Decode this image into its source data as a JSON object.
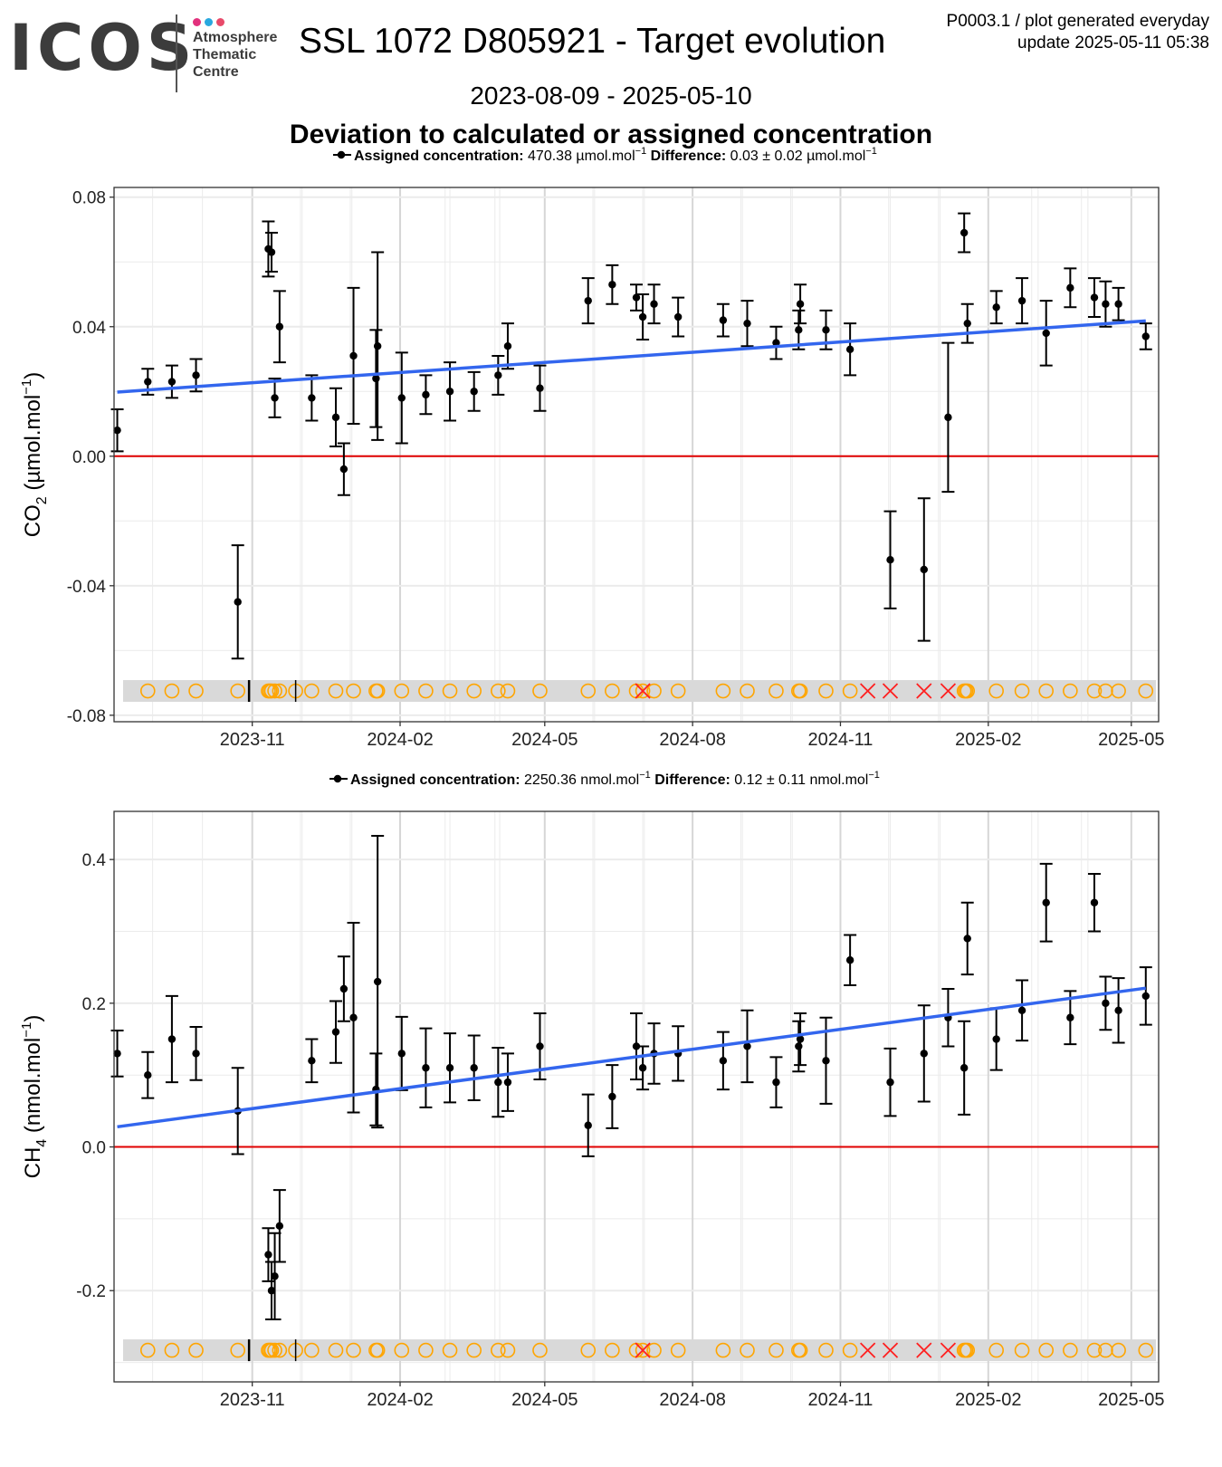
{
  "header": {
    "logo": "ICOS",
    "logo_line1": "Atmosphere",
    "logo_line2": "Thematic",
    "logo_line3": "Centre",
    "logo_dot_colors": [
      "#e2317d",
      "#29a8df",
      "#e84a6a"
    ],
    "title": "SSL 1072 D805921 - Target evolution",
    "meta_line1": "P0003.1 / plot generated everyday",
    "meta_line2": "update  2025-05-11 05:38",
    "date_range": "2023-08-09 - 2025-05-10",
    "subtitle": "Deviation to calculated or assigned concentration"
  },
  "colors": {
    "points": "#000000",
    "trend": "#3366ee",
    "zero_line": "#e00000",
    "flag_ok": "#ffa500",
    "flag_bad": "#ff2020",
    "flag_band": "#d9d9d9",
    "grid": "#ebebeb"
  },
  "chart_data": [
    {
      "type": "scatter",
      "legend_label": "Assigned concentration:",
      "legend_value": " 470.38 µmol.mol",
      "legend_diff_label": "Difference:",
      "legend_diff_value": " 0.03 ± 0.02 µmol.mol",
      "legend_sup": "−1",
      "ylabel": "CO",
      "ylabel_sub": "2",
      "ylabel_unit": " (µmol.mol",
      "ylabel_sup": "−1",
      "ylabel_end": ")",
      "ylim": [
        -0.082,
        0.083
      ],
      "yticks": [
        -0.08,
        -0.04,
        0.0,
        0.04,
        0.08
      ],
      "ytick_labels": [
        "-0.08",
        "-0.04",
        "0.00",
        "0.04",
        "0.08"
      ],
      "xlim": [
        "2023-08-07",
        "2025-05-18"
      ],
      "xticks": [
        "2023-11-01",
        "2024-02-01",
        "2024-05-01",
        "2024-08-01",
        "2024-11-01",
        "2025-02-01",
        "2025-05-01"
      ],
      "xtick_labels": [
        "2023-11",
        "2024-02",
        "2024-05",
        "2024-08",
        "2024-11",
        "2025-02",
        "2025-05"
      ],
      "trend": {
        "start": [
          "2023-08-09",
          0.0198
        ],
        "end": [
          "2025-05-10",
          0.0418
        ]
      },
      "flag_y": -0.0725,
      "points": [
        {
          "date": "2023-08-09",
          "y": 0.008,
          "lo": 0.0015,
          "hi": 0.0145
        },
        {
          "date": "2023-08-28",
          "y": 0.023,
          "lo": 0.019,
          "hi": 0.027
        },
        {
          "date": "2023-09-12",
          "y": 0.023,
          "lo": 0.018,
          "hi": 0.028
        },
        {
          "date": "2023-09-27",
          "y": 0.025,
          "lo": 0.02,
          "hi": 0.03
        },
        {
          "date": "2023-10-23",
          "y": -0.045,
          "lo": -0.0625,
          "hi": -0.0275
        },
        {
          "date": "2023-11-11",
          "y": 0.064,
          "lo": 0.0555,
          "hi": 0.0725
        },
        {
          "date": "2023-11-13",
          "y": 0.063,
          "lo": 0.057,
          "hi": 0.069
        },
        {
          "date": "2023-11-15",
          "y": 0.018,
          "lo": 0.012,
          "hi": 0.024
        },
        {
          "date": "2023-11-18",
          "y": 0.04,
          "lo": 0.029,
          "hi": 0.051
        },
        {
          "date": "2023-12-08",
          "y": 0.018,
          "lo": 0.011,
          "hi": 0.025
        },
        {
          "date": "2023-12-23",
          "y": 0.012,
          "lo": 0.003,
          "hi": 0.021
        },
        {
          "date": "2023-12-28",
          "y": -0.004,
          "lo": -0.012,
          "hi": 0.004
        },
        {
          "date": "2024-01-03",
          "y": 0.031,
          "lo": 0.01,
          "hi": 0.052
        },
        {
          "date": "2024-01-17",
          "y": 0.024,
          "lo": 0.009,
          "hi": 0.039
        },
        {
          "date": "2024-01-18",
          "y": 0.034,
          "lo": 0.005,
          "hi": 0.063
        },
        {
          "date": "2024-02-02",
          "y": 0.018,
          "lo": 0.004,
          "hi": 0.032
        },
        {
          "date": "2024-02-17",
          "y": 0.019,
          "lo": 0.013,
          "hi": 0.025
        },
        {
          "date": "2024-03-03",
          "y": 0.02,
          "lo": 0.011,
          "hi": 0.029
        },
        {
          "date": "2024-03-18",
          "y": 0.02,
          "lo": 0.014,
          "hi": 0.026
        },
        {
          "date": "2024-04-02",
          "y": 0.025,
          "lo": 0.019,
          "hi": 0.031
        },
        {
          "date": "2024-04-08",
          "y": 0.034,
          "lo": 0.027,
          "hi": 0.041
        },
        {
          "date": "2024-04-28",
          "y": 0.021,
          "lo": 0.014,
          "hi": 0.028
        },
        {
          "date": "2024-05-28",
          "y": 0.048,
          "lo": 0.041,
          "hi": 0.055
        },
        {
          "date": "2024-06-12",
          "y": 0.053,
          "lo": 0.047,
          "hi": 0.059
        },
        {
          "date": "2024-06-27",
          "y": 0.049,
          "lo": 0.045,
          "hi": 0.053
        },
        {
          "date": "2024-07-01",
          "y": 0.043,
          "lo": 0.036,
          "hi": 0.05
        },
        {
          "date": "2024-07-08",
          "y": 0.047,
          "lo": 0.041,
          "hi": 0.053
        },
        {
          "date": "2024-07-23",
          "y": 0.043,
          "lo": 0.037,
          "hi": 0.049
        },
        {
          "date": "2024-08-20",
          "y": 0.042,
          "lo": 0.037,
          "hi": 0.047
        },
        {
          "date": "2024-09-04",
          "y": 0.041,
          "lo": 0.034,
          "hi": 0.048
        },
        {
          "date": "2024-09-22",
          "y": 0.035,
          "lo": 0.03,
          "hi": 0.04
        },
        {
          "date": "2024-10-06",
          "y": 0.039,
          "lo": 0.033,
          "hi": 0.045
        },
        {
          "date": "2024-10-07",
          "y": 0.047,
          "lo": 0.041,
          "hi": 0.053
        },
        {
          "date": "2024-10-23",
          "y": 0.039,
          "lo": 0.033,
          "hi": 0.045
        },
        {
          "date": "2024-11-07",
          "y": 0.033,
          "lo": 0.025,
          "hi": 0.041
        },
        {
          "date": "2024-12-02",
          "y": -0.032,
          "lo": -0.047,
          "hi": -0.017
        },
        {
          "date": "2024-12-23",
          "y": -0.035,
          "lo": -0.057,
          "hi": -0.013
        },
        {
          "date": "2025-01-07",
          "y": 0.012,
          "lo": -0.011,
          "hi": 0.035
        },
        {
          "date": "2025-01-17",
          "y": 0.069,
          "lo": 0.063,
          "hi": 0.075
        },
        {
          "date": "2025-01-19",
          "y": 0.041,
          "lo": 0.035,
          "hi": 0.047
        },
        {
          "date": "2025-02-06",
          "y": 0.046,
          "lo": 0.041,
          "hi": 0.051
        },
        {
          "date": "2025-02-22",
          "y": 0.048,
          "lo": 0.041,
          "hi": 0.055
        },
        {
          "date": "2025-03-09",
          "y": 0.038,
          "lo": 0.028,
          "hi": 0.048
        },
        {
          "date": "2025-03-24",
          "y": 0.052,
          "lo": 0.046,
          "hi": 0.058
        },
        {
          "date": "2025-04-08",
          "y": 0.049,
          "lo": 0.043,
          "hi": 0.055
        },
        {
          "date": "2025-04-15",
          "y": 0.047,
          "lo": 0.04,
          "hi": 0.054
        },
        {
          "date": "2025-04-23",
          "y": 0.047,
          "lo": 0.042,
          "hi": 0.052
        },
        {
          "date": "2025-05-10",
          "y": 0.037,
          "lo": 0.033,
          "hi": 0.041
        }
      ]
    },
    {
      "type": "scatter",
      "legend_label": "Assigned concentration:",
      "legend_value": " 2250.36 nmol.mol",
      "legend_diff_label": "Difference:",
      "legend_diff_value": " 0.12 ± 0.11 nmol.mol",
      "legend_sup": "−1",
      "ylabel": "CH",
      "ylabel_sub": "4",
      "ylabel_unit": " (nmol.mol",
      "ylabel_sup": "−1",
      "ylabel_end": ")",
      "ylim": [
        -0.327,
        0.467
      ],
      "yticks": [
        -0.2,
        0.0,
        0.2,
        0.4
      ],
      "ytick_labels": [
        "-0.2",
        "0.0",
        "0.2",
        "0.4"
      ],
      "xlim": [
        "2023-08-07",
        "2025-05-18"
      ],
      "xticks": [
        "2023-11-01",
        "2024-02-01",
        "2024-05-01",
        "2024-08-01",
        "2024-11-01",
        "2025-02-01",
        "2025-05-01"
      ],
      "xtick_labels": [
        "2023-11",
        "2024-02",
        "2024-05",
        "2024-08",
        "2024-11",
        "2025-02",
        "2025-05"
      ],
      "trend": {
        "start": [
          "2023-08-09",
          0.028
        ],
        "end": [
          "2025-05-10",
          0.221
        ]
      },
      "flag_y": -0.283,
      "points": [
        {
          "date": "2023-08-09",
          "y": 0.13,
          "lo": 0.098,
          "hi": 0.162
        },
        {
          "date": "2023-08-28",
          "y": 0.1,
          "lo": 0.068,
          "hi": 0.132
        },
        {
          "date": "2023-09-12",
          "y": 0.15,
          "lo": 0.09,
          "hi": 0.21
        },
        {
          "date": "2023-09-27",
          "y": 0.13,
          "lo": 0.093,
          "hi": 0.167
        },
        {
          "date": "2023-10-23",
          "y": 0.05,
          "lo": -0.01,
          "hi": 0.11
        },
        {
          "date": "2023-11-11",
          "y": -0.15,
          "lo": -0.187,
          "hi": -0.113
        },
        {
          "date": "2023-11-13",
          "y": -0.2,
          "lo": -0.24,
          "hi": -0.16
        },
        {
          "date": "2023-11-15",
          "y": -0.18,
          "lo": -0.24,
          "hi": -0.12
        },
        {
          "date": "2023-11-18",
          "y": -0.11,
          "lo": -0.16,
          "hi": -0.06
        },
        {
          "date": "2023-12-08",
          "y": 0.12,
          "lo": 0.09,
          "hi": 0.15
        },
        {
          "date": "2023-12-23",
          "y": 0.16,
          "lo": 0.117,
          "hi": 0.203
        },
        {
          "date": "2023-12-28",
          "y": 0.22,
          "lo": 0.175,
          "hi": 0.265
        },
        {
          "date": "2024-01-03",
          "y": 0.18,
          "lo": 0.048,
          "hi": 0.312
        },
        {
          "date": "2024-01-17",
          "y": 0.08,
          "lo": 0.03,
          "hi": 0.13
        },
        {
          "date": "2024-01-18",
          "y": 0.23,
          "lo": 0.027,
          "hi": 0.433
        },
        {
          "date": "2024-02-02",
          "y": 0.13,
          "lo": 0.079,
          "hi": 0.181
        },
        {
          "date": "2024-02-17",
          "y": 0.11,
          "lo": 0.055,
          "hi": 0.165
        },
        {
          "date": "2024-03-03",
          "y": 0.11,
          "lo": 0.062,
          "hi": 0.158
        },
        {
          "date": "2024-03-18",
          "y": 0.11,
          "lo": 0.065,
          "hi": 0.155
        },
        {
          "date": "2024-04-02",
          "y": 0.09,
          "lo": 0.042,
          "hi": 0.138
        },
        {
          "date": "2024-04-08",
          "y": 0.09,
          "lo": 0.05,
          "hi": 0.13
        },
        {
          "date": "2024-04-28",
          "y": 0.14,
          "lo": 0.094,
          "hi": 0.186
        },
        {
          "date": "2024-05-28",
          "y": 0.03,
          "lo": -0.013,
          "hi": 0.073
        },
        {
          "date": "2024-06-12",
          "y": 0.07,
          "lo": 0.026,
          "hi": 0.114
        },
        {
          "date": "2024-06-27",
          "y": 0.14,
          "lo": 0.094,
          "hi": 0.186
        },
        {
          "date": "2024-07-01",
          "y": 0.11,
          "lo": 0.08,
          "hi": 0.14
        },
        {
          "date": "2024-07-08",
          "y": 0.13,
          "lo": 0.088,
          "hi": 0.172
        },
        {
          "date": "2024-07-23",
          "y": 0.13,
          "lo": 0.092,
          "hi": 0.168
        },
        {
          "date": "2024-08-20",
          "y": 0.12,
          "lo": 0.08,
          "hi": 0.16
        },
        {
          "date": "2024-09-04",
          "y": 0.14,
          "lo": 0.09,
          "hi": 0.19
        },
        {
          "date": "2024-09-22",
          "y": 0.09,
          "lo": 0.055,
          "hi": 0.125
        },
        {
          "date": "2024-10-06",
          "y": 0.14,
          "lo": 0.105,
          "hi": 0.175
        },
        {
          "date": "2024-10-07",
          "y": 0.15,
          "lo": 0.114,
          "hi": 0.186
        },
        {
          "date": "2024-10-23",
          "y": 0.12,
          "lo": 0.06,
          "hi": 0.18
        },
        {
          "date": "2024-11-07",
          "y": 0.26,
          "lo": 0.225,
          "hi": 0.295
        },
        {
          "date": "2024-12-02",
          "y": 0.09,
          "lo": 0.043,
          "hi": 0.137
        },
        {
          "date": "2024-12-23",
          "y": 0.13,
          "lo": 0.063,
          "hi": 0.197
        },
        {
          "date": "2025-01-07",
          "y": 0.18,
          "lo": 0.14,
          "hi": 0.22
        },
        {
          "date": "2025-01-17",
          "y": 0.11,
          "lo": 0.045,
          "hi": 0.175
        },
        {
          "date": "2025-01-19",
          "y": 0.29,
          "lo": 0.24,
          "hi": 0.34
        },
        {
          "date": "2025-02-06",
          "y": 0.15,
          "lo": 0.107,
          "hi": 0.193
        },
        {
          "date": "2025-02-22",
          "y": 0.19,
          "lo": 0.148,
          "hi": 0.232
        },
        {
          "date": "2025-03-09",
          "y": 0.34,
          "lo": 0.286,
          "hi": 0.394
        },
        {
          "date": "2025-03-24",
          "y": 0.18,
          "lo": 0.143,
          "hi": 0.217
        },
        {
          "date": "2025-04-08",
          "y": 0.34,
          "lo": 0.3,
          "hi": 0.38
        },
        {
          "date": "2025-04-15",
          "y": 0.2,
          "lo": 0.163,
          "hi": 0.237
        },
        {
          "date": "2025-04-23",
          "y": 0.19,
          "lo": 0.145,
          "hi": 0.235
        },
        {
          "date": "2025-05-10",
          "y": 0.21,
          "lo": 0.17,
          "hi": 0.25
        }
      ]
    }
  ],
  "flags": {
    "ok_dates": [
      "2023-08-28",
      "2023-09-12",
      "2023-09-27",
      "2023-10-23",
      "2023-11-11",
      "2023-11-12",
      "2023-11-13",
      "2023-11-15",
      "2023-11-18",
      "2023-11-28",
      "2023-12-08",
      "2023-12-23",
      "2024-01-03",
      "2024-01-17",
      "2024-01-18",
      "2024-02-02",
      "2024-02-17",
      "2024-03-03",
      "2024-03-18",
      "2024-04-02",
      "2024-04-08",
      "2024-04-28",
      "2024-05-28",
      "2024-06-12",
      "2024-06-27",
      "2024-07-01",
      "2024-07-08",
      "2024-07-23",
      "2024-08-20",
      "2024-09-04",
      "2024-09-22",
      "2024-10-06",
      "2024-10-07",
      "2024-10-23",
      "2024-11-07",
      "2025-01-17",
      "2025-01-18",
      "2025-01-19",
      "2025-02-06",
      "2025-02-22",
      "2025-03-09",
      "2025-03-24",
      "2025-04-08",
      "2025-04-15",
      "2025-04-23",
      "2025-05-10"
    ],
    "bad_dates": [
      "2024-07-01",
      "2024-11-18",
      "2024-12-02",
      "2024-12-23",
      "2025-01-07"
    ],
    "tick_dates": [
      "2023-10-30",
      "2023-11-28"
    ]
  }
}
